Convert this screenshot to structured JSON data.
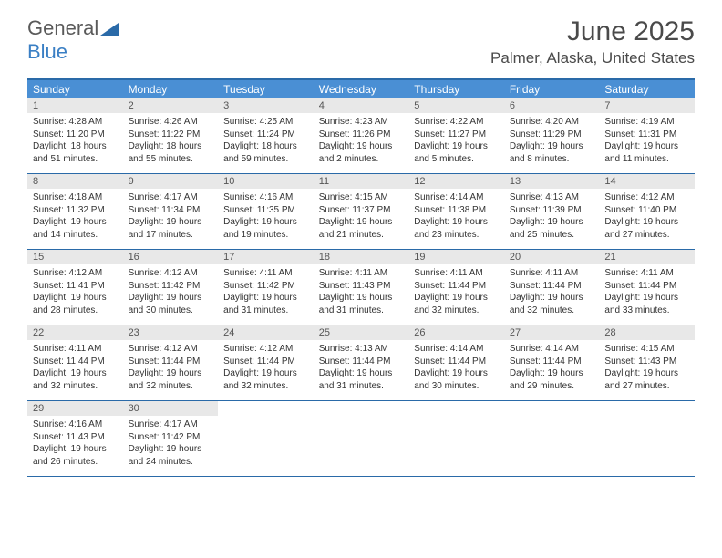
{
  "logo": {
    "part1": "General",
    "part2": "Blue"
  },
  "title": "June 2025",
  "location": "Palmer, Alaska, United States",
  "colors": {
    "header_bg": "#4a8fd4",
    "border": "#2a6aa8",
    "daynum_bg": "#e8e8e8",
    "text": "#333333"
  },
  "weekdays": [
    "Sunday",
    "Monday",
    "Tuesday",
    "Wednesday",
    "Thursday",
    "Friday",
    "Saturday"
  ],
  "weeks": [
    [
      {
        "n": "1",
        "sunrise": "4:28 AM",
        "sunset": "11:20 PM",
        "daylight": "18 hours and 51 minutes."
      },
      {
        "n": "2",
        "sunrise": "4:26 AM",
        "sunset": "11:22 PM",
        "daylight": "18 hours and 55 minutes."
      },
      {
        "n": "3",
        "sunrise": "4:25 AM",
        "sunset": "11:24 PM",
        "daylight": "18 hours and 59 minutes."
      },
      {
        "n": "4",
        "sunrise": "4:23 AM",
        "sunset": "11:26 PM",
        "daylight": "19 hours and 2 minutes."
      },
      {
        "n": "5",
        "sunrise": "4:22 AM",
        "sunset": "11:27 PM",
        "daylight": "19 hours and 5 minutes."
      },
      {
        "n": "6",
        "sunrise": "4:20 AM",
        "sunset": "11:29 PM",
        "daylight": "19 hours and 8 minutes."
      },
      {
        "n": "7",
        "sunrise": "4:19 AM",
        "sunset": "11:31 PM",
        "daylight": "19 hours and 11 minutes."
      }
    ],
    [
      {
        "n": "8",
        "sunrise": "4:18 AM",
        "sunset": "11:32 PM",
        "daylight": "19 hours and 14 minutes."
      },
      {
        "n": "9",
        "sunrise": "4:17 AM",
        "sunset": "11:34 PM",
        "daylight": "19 hours and 17 minutes."
      },
      {
        "n": "10",
        "sunrise": "4:16 AM",
        "sunset": "11:35 PM",
        "daylight": "19 hours and 19 minutes."
      },
      {
        "n": "11",
        "sunrise": "4:15 AM",
        "sunset": "11:37 PM",
        "daylight": "19 hours and 21 minutes."
      },
      {
        "n": "12",
        "sunrise": "4:14 AM",
        "sunset": "11:38 PM",
        "daylight": "19 hours and 23 minutes."
      },
      {
        "n": "13",
        "sunrise": "4:13 AM",
        "sunset": "11:39 PM",
        "daylight": "19 hours and 25 minutes."
      },
      {
        "n": "14",
        "sunrise": "4:12 AM",
        "sunset": "11:40 PM",
        "daylight": "19 hours and 27 minutes."
      }
    ],
    [
      {
        "n": "15",
        "sunrise": "4:12 AM",
        "sunset": "11:41 PM",
        "daylight": "19 hours and 28 minutes."
      },
      {
        "n": "16",
        "sunrise": "4:12 AM",
        "sunset": "11:42 PM",
        "daylight": "19 hours and 30 minutes."
      },
      {
        "n": "17",
        "sunrise": "4:11 AM",
        "sunset": "11:42 PM",
        "daylight": "19 hours and 31 minutes."
      },
      {
        "n": "18",
        "sunrise": "4:11 AM",
        "sunset": "11:43 PM",
        "daylight": "19 hours and 31 minutes."
      },
      {
        "n": "19",
        "sunrise": "4:11 AM",
        "sunset": "11:44 PM",
        "daylight": "19 hours and 32 minutes."
      },
      {
        "n": "20",
        "sunrise": "4:11 AM",
        "sunset": "11:44 PM",
        "daylight": "19 hours and 32 minutes."
      },
      {
        "n": "21",
        "sunrise": "4:11 AM",
        "sunset": "11:44 PM",
        "daylight": "19 hours and 33 minutes."
      }
    ],
    [
      {
        "n": "22",
        "sunrise": "4:11 AM",
        "sunset": "11:44 PM",
        "daylight": "19 hours and 32 minutes."
      },
      {
        "n": "23",
        "sunrise": "4:12 AM",
        "sunset": "11:44 PM",
        "daylight": "19 hours and 32 minutes."
      },
      {
        "n": "24",
        "sunrise": "4:12 AM",
        "sunset": "11:44 PM",
        "daylight": "19 hours and 32 minutes."
      },
      {
        "n": "25",
        "sunrise": "4:13 AM",
        "sunset": "11:44 PM",
        "daylight": "19 hours and 31 minutes."
      },
      {
        "n": "26",
        "sunrise": "4:14 AM",
        "sunset": "11:44 PM",
        "daylight": "19 hours and 30 minutes."
      },
      {
        "n": "27",
        "sunrise": "4:14 AM",
        "sunset": "11:44 PM",
        "daylight": "19 hours and 29 minutes."
      },
      {
        "n": "28",
        "sunrise": "4:15 AM",
        "sunset": "11:43 PM",
        "daylight": "19 hours and 27 minutes."
      }
    ],
    [
      {
        "n": "29",
        "sunrise": "4:16 AM",
        "sunset": "11:43 PM",
        "daylight": "19 hours and 26 minutes."
      },
      {
        "n": "30",
        "sunrise": "4:17 AM",
        "sunset": "11:42 PM",
        "daylight": "19 hours and 24 minutes."
      },
      null,
      null,
      null,
      null,
      null
    ]
  ],
  "labels": {
    "sunrise": "Sunrise:",
    "sunset": "Sunset:",
    "daylight": "Daylight:"
  }
}
